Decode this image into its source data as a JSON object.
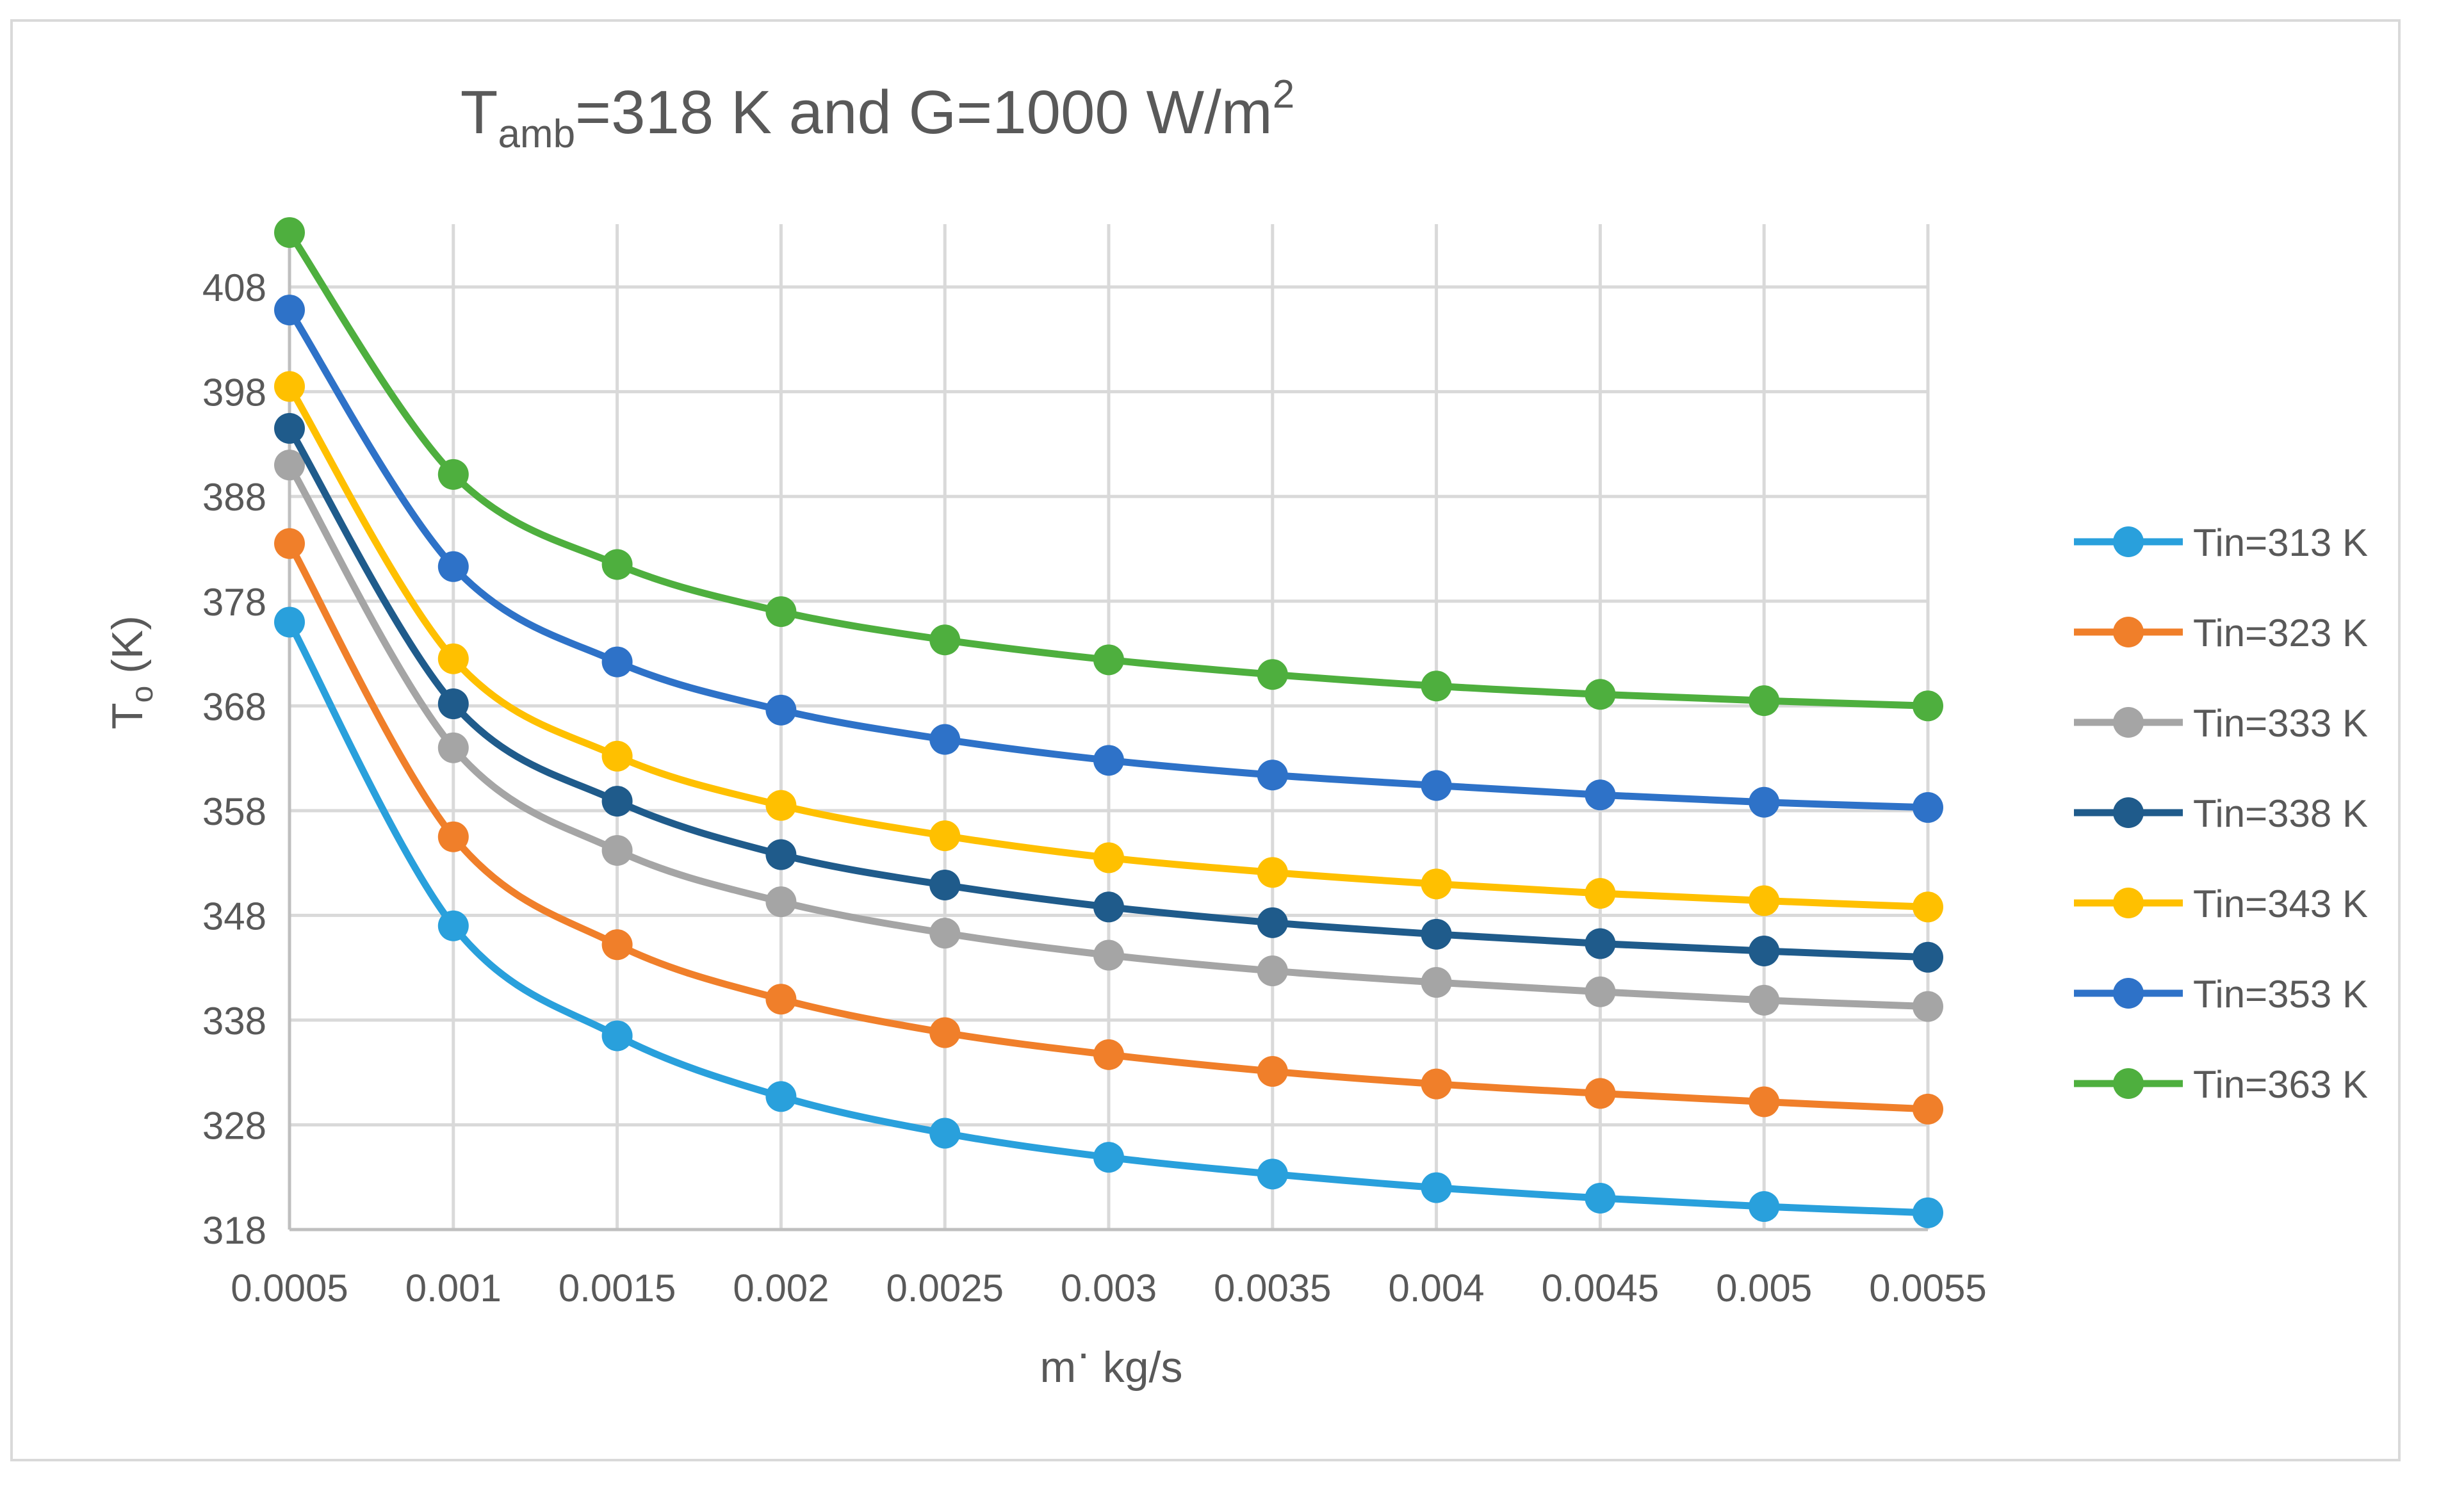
{
  "chart_data": {
    "type": "line",
    "smooth": true,
    "title": {
      "main": "T",
      "sub": "amb",
      "rest": "=318 K and G=1000 W/m",
      "sup": "2"
    },
    "xlabel": {
      "main": "m",
      "dot": "·",
      "rest": " kg/s"
    },
    "ylabel": {
      "main": "T",
      "sub": "o",
      "rest": " (K)"
    },
    "x": [
      0.0005,
      0.001,
      0.0015,
      0.002,
      0.0025,
      0.003,
      0.0035,
      0.004,
      0.0045,
      0.005,
      0.0055
    ],
    "x_tick_labels": [
      "0.0005",
      "0.001",
      "0.0015",
      "0.002",
      "0.0025",
      "0.003",
      "0.0035",
      "0.004",
      "0.0045",
      "0.005",
      "0.0055"
    ],
    "y_ticks": [
      318,
      328,
      338,
      348,
      358,
      368,
      378,
      388,
      398,
      408
    ],
    "y_tick_labels": [
      "318",
      "328",
      "338",
      "348",
      "358",
      "368",
      "378",
      "388",
      "398",
      "408"
    ],
    "ylim": [
      318,
      414
    ],
    "grid": true,
    "legend_position": "right",
    "series": [
      {
        "name": "Tin=313 K",
        "color": "#29A0DC",
        "values": [
          376.0,
          347.0,
          336.5,
          330.7,
          327.2,
          324.9,
          323.3,
          322.0,
          321.0,
          320.2,
          319.6
        ]
      },
      {
        "name": "Tin=323 K",
        "color": "#F07F2A",
        "values": [
          383.5,
          355.5,
          345.2,
          340.0,
          336.8,
          334.7,
          333.1,
          331.9,
          331.0,
          330.2,
          329.5
        ]
      },
      {
        "name": "Tin=333 K",
        "color": "#A5A5A5",
        "values": [
          391.0,
          364.0,
          354.2,
          349.3,
          346.3,
          344.2,
          342.7,
          341.6,
          340.7,
          339.9,
          339.3
        ]
      },
      {
        "name": "Tin=338 K",
        "color": "#1F5B8B",
        "values": [
          394.5,
          368.2,
          358.9,
          353.8,
          350.9,
          348.8,
          347.3,
          346.2,
          345.3,
          344.6,
          344.0
        ]
      },
      {
        "name": "Tin=343 K",
        "color": "#FFC000",
        "values": [
          398.5,
          372.5,
          363.2,
          358.5,
          355.6,
          353.5,
          352.1,
          351.0,
          350.1,
          349.4,
          348.8
        ]
      },
      {
        "name": "Tin=353 K",
        "color": "#2E72C8",
        "values": [
          405.8,
          381.3,
          372.2,
          367.6,
          364.8,
          362.8,
          361.4,
          360.4,
          359.5,
          358.8,
          358.3
        ]
      },
      {
        "name": "Tin=363 K",
        "color": "#4EAF3E",
        "values": [
          413.2,
          390.1,
          381.5,
          377.0,
          374.3,
          372.4,
          371.0,
          369.9,
          369.1,
          368.5,
          368.0
        ]
      }
    ]
  }
}
